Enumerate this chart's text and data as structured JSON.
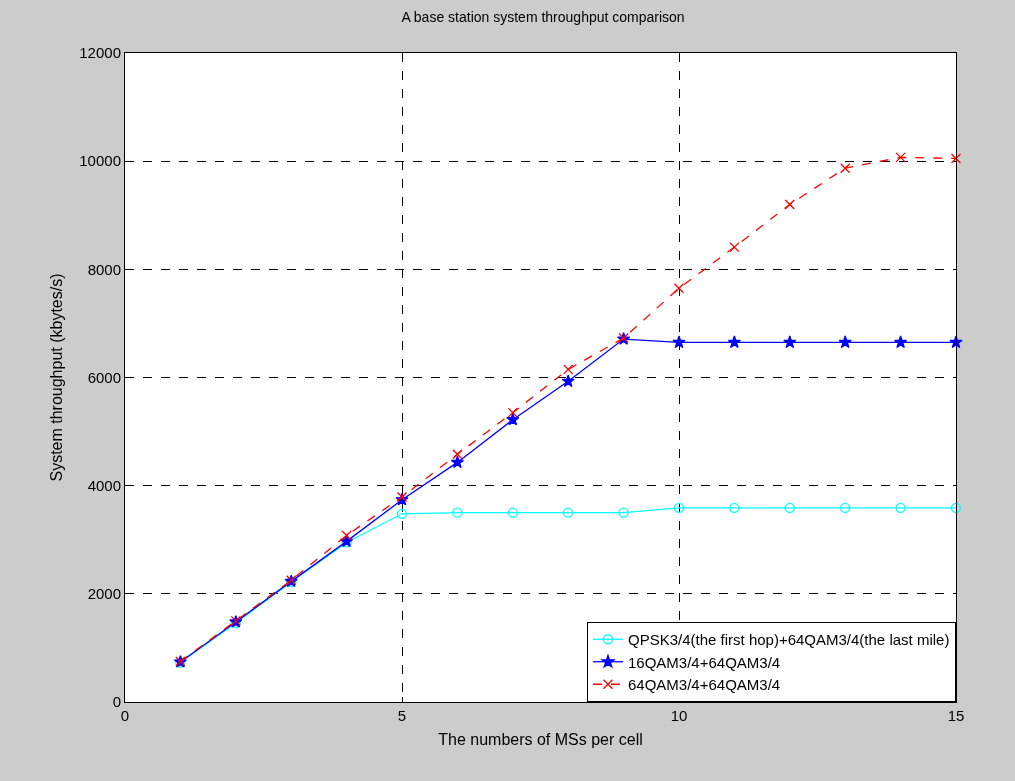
{
  "chart_data": {
    "type": "line",
    "title": "A base station system throughput comparison",
    "xlabel": "The numbers of MSs per cell",
    "ylabel": "System throughput (kbytes/s)",
    "x": [
      1,
      2,
      3,
      4,
      5,
      6,
      7,
      8,
      9,
      10,
      11,
      12,
      13,
      14,
      15
    ],
    "series": [
      {
        "name": "QPSK3/4(the first hop)+64QAM3/4(the last mile)",
        "color": "#00ffff",
        "marker": "circle",
        "line_style": "solid",
        "values": [
          730,
          1460,
          2220,
          2950,
          3480,
          3500,
          3500,
          3500,
          3500,
          3590,
          3590,
          3590,
          3590,
          3590,
          3590
        ]
      },
      {
        "name": "16QAM3/4+64QAM3/4",
        "color": "#0000ff",
        "marker": "star",
        "line_style": "solid",
        "values": [
          740,
          1480,
          2230,
          2970,
          3740,
          4430,
          5220,
          5930,
          6710,
          6650,
          6650,
          6650,
          6650,
          6650,
          6650
        ]
      },
      {
        "name": "64QAM3/4+64QAM3/4",
        "color": "#ff0000",
        "marker": "cross",
        "line_style": "dashed",
        "values": [
          750,
          1500,
          2250,
          3080,
          3790,
          4580,
          5350,
          6150,
          6730,
          7650,
          8410,
          9200,
          9870,
          10070,
          10050
        ]
      }
    ],
    "xlim": [
      0,
      15
    ],
    "xticks": [
      0,
      5,
      10,
      15
    ],
    "ylim": [
      0,
      12000
    ],
    "yticks": [
      0,
      2000,
      4000,
      6000,
      8000,
      10000,
      12000
    ],
    "grid": true,
    "legend": "bottom right"
  }
}
